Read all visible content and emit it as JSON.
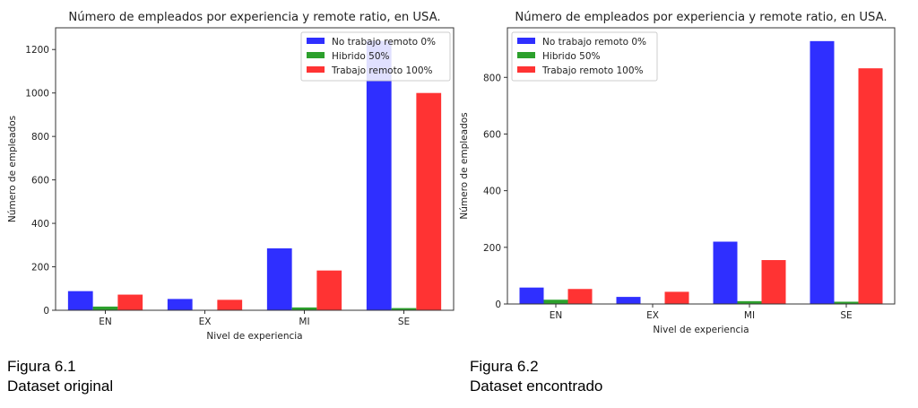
{
  "colors": {
    "no_remote": "#2f2fff",
    "hybrid": "#2ca02c",
    "remote": "#ff3333"
  },
  "figures": [
    {
      "caption_line1": "Figura 6.1",
      "caption_line2": "Dataset original"
    },
    {
      "caption_line1": "Figura 6.2",
      "caption_line2": "Dataset encontrado"
    }
  ],
  "chart_data": [
    {
      "type": "bar",
      "title": "Número de empleados por experiencia y remote ratio, en USA.",
      "xlabel": "Nivel de experiencia",
      "ylabel": "Número de empleados",
      "categories": [
        "EN",
        "EX",
        "MI",
        "SE"
      ],
      "yticks": [
        0,
        200,
        400,
        600,
        800,
        1000,
        1200
      ],
      "ylim": [
        0,
        1300
      ],
      "legend_position": "top-right",
      "grid": false,
      "series": [
        {
          "name": "No trabajo remoto 0%",
          "values": [
            88,
            52,
            285,
            1240
          ]
        },
        {
          "name": "Hibrido 50%",
          "values": [
            17,
            0,
            13,
            10
          ]
        },
        {
          "name": "Trabajo remoto 100%",
          "values": [
            72,
            48,
            183,
            1000
          ]
        }
      ]
    },
    {
      "type": "bar",
      "title": "Número de empleados por experiencia y remote ratio, en USA.",
      "xlabel": "Nivel de experiencia",
      "ylabel": "Número de empleados",
      "categories": [
        "EN",
        "EX",
        "MI",
        "SE"
      ],
      "yticks": [
        0,
        200,
        400,
        600,
        800
      ],
      "ylim": [
        0,
        975
      ],
      "legend_position": "top-left",
      "grid": false,
      "series": [
        {
          "name": "No trabajo remoto 0%",
          "values": [
            58,
            25,
            220,
            928
          ]
        },
        {
          "name": "Hibrido 50%",
          "values": [
            15,
            0,
            10,
            8
          ]
        },
        {
          "name": "Trabajo remoto 100%",
          "values": [
            53,
            43,
            155,
            832
          ]
        }
      ]
    }
  ]
}
